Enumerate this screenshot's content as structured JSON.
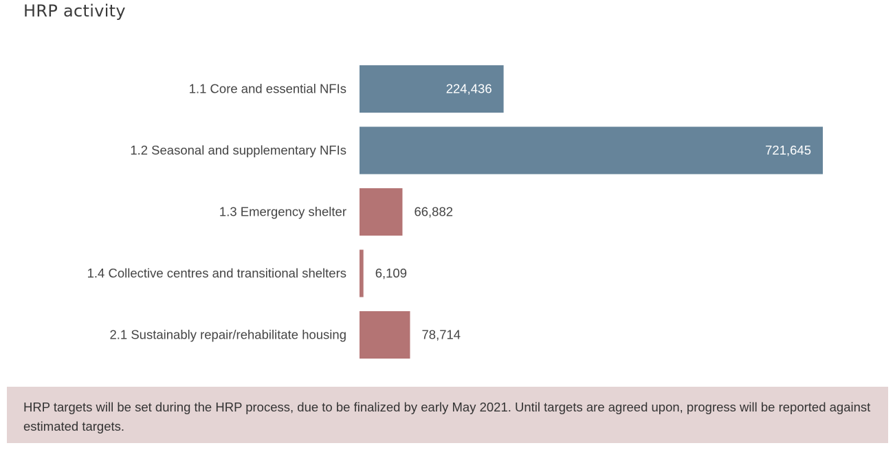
{
  "title": "HRP activity",
  "chart_data": {
    "type": "bar",
    "orientation": "horizontal",
    "title": "HRP activity",
    "categories": [
      "1.1 Core and essential NFIs",
      "1.2 Seasonal and supplementary NFIs",
      "1.3 Emergency shelter",
      "1.4 Collective centres and transitional shelters",
      "2.1 Sustainably repair/rehabilitate housing"
    ],
    "values": [
      224436,
      721645,
      66882,
      6109,
      78714
    ],
    "value_labels": [
      "224,436",
      "721,645",
      "66,882",
      "6,109",
      "78,714"
    ],
    "colors": [
      "#66849a",
      "#66849a",
      "#b47474",
      "#b47474",
      "#b47474"
    ],
    "xlim": [
      0,
      721645
    ],
    "grid": false,
    "legend": "none"
  },
  "note": {
    "text": "HRP targets will be set during the HRP process, due to be finalized by early May 2021. Until targets are agreed upon, progress will be reported against estimated targets.",
    "background": "#e4d4d4"
  }
}
